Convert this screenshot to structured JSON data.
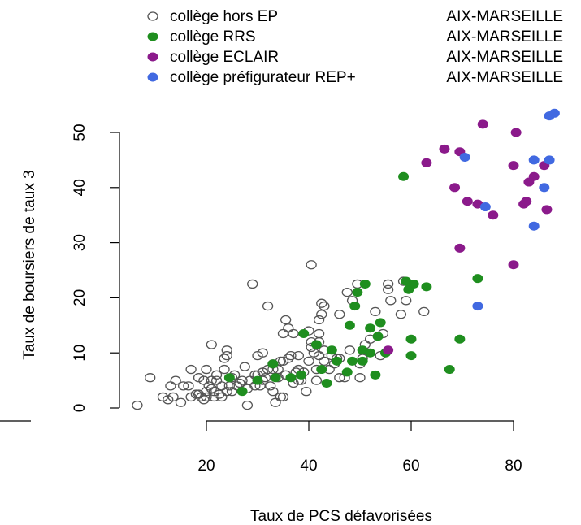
{
  "chart_data": {
    "type": "scatter",
    "xlabel": "Taux de PCS défavorisées",
    "ylabel": "Taux de boursiers de taux 3",
    "xlim": [
      5,
      89
    ],
    "ylim": [
      -1,
      57
    ],
    "xticks": [
      20,
      40,
      60,
      80
    ],
    "yticks": [
      0,
      10,
      20,
      30,
      40,
      50
    ],
    "xtick_labels": [
      "20",
      "40",
      "60",
      "80"
    ],
    "ytick_labels": [
      "0",
      "10",
      "20",
      "30",
      "40",
      "50"
    ],
    "grid": false,
    "legend_position": "top",
    "series": [
      {
        "name": "collège hors EP",
        "region": "AIX-MARSEILLE",
        "color": "#555555",
        "marker": "open-circle",
        "points": [
          [
            6.5,
            0.5
          ],
          [
            9,
            5.5
          ],
          [
            11.5,
            2
          ],
          [
            12.5,
            1.5
          ],
          [
            13,
            4
          ],
          [
            13.5,
            2
          ],
          [
            14,
            5
          ],
          [
            15,
            1
          ],
          [
            15.5,
            4
          ],
          [
            16.5,
            4
          ],
          [
            17,
            2
          ],
          [
            17,
            7
          ],
          [
            18,
            2.5
          ],
          [
            18.5,
            2.5
          ],
          [
            18.5,
            5.5
          ],
          [
            19,
            2
          ],
          [
            19.5,
            1.5
          ],
          [
            19.5,
            5
          ],
          [
            20,
            2
          ],
          [
            20,
            3
          ],
          [
            20,
            7
          ],
          [
            20.5,
            4
          ],
          [
            21,
            3.5
          ],
          [
            21,
            5
          ],
          [
            21,
            11.5
          ],
          [
            21.5,
            2
          ],
          [
            21.5,
            3
          ],
          [
            22,
            5
          ],
          [
            22,
            6
          ],
          [
            22.5,
            2.5
          ],
          [
            23,
            4
          ],
          [
            23,
            2
          ],
          [
            23.5,
            7
          ],
          [
            23.5,
            9
          ],
          [
            24,
            3
          ],
          [
            24,
            9.5
          ],
          [
            24,
            10.5
          ],
          [
            24.5,
            4
          ],
          [
            25,
            3
          ],
          [
            25,
            5.5
          ],
          [
            25.5,
            6
          ],
          [
            26,
            4
          ],
          [
            26.5,
            4.5
          ],
          [
            27,
            5
          ],
          [
            27.5,
            7.5
          ],
          [
            28,
            0.5
          ],
          [
            28,
            3.5
          ],
          [
            28.5,
            5
          ],
          [
            29,
            22.5
          ],
          [
            29.5,
            4
          ],
          [
            29.5,
            6
          ],
          [
            30,
            6
          ],
          [
            30,
            9.5
          ],
          [
            30.5,
            4
          ],
          [
            31,
            5
          ],
          [
            31,
            6.5
          ],
          [
            31,
            10
          ],
          [
            31.5,
            5.5
          ],
          [
            32,
            7
          ],
          [
            32,
            18.5
          ],
          [
            32.5,
            4
          ],
          [
            33,
            3
          ],
          [
            33,
            7
          ],
          [
            33,
            8
          ],
          [
            33.5,
            1
          ],
          [
            34,
            5.5
          ],
          [
            34,
            7
          ],
          [
            34.5,
            2
          ],
          [
            34.5,
            8.5
          ],
          [
            35,
            2
          ],
          [
            35,
            8.5
          ],
          [
            35,
            13.5
          ],
          [
            35.5,
            6
          ],
          [
            35.5,
            16
          ],
          [
            36,
            9
          ],
          [
            36,
            14.5
          ],
          [
            36.5,
            9.5
          ],
          [
            37,
            4.5
          ],
          [
            37,
            13.5
          ],
          [
            37.5,
            6.5
          ],
          [
            38,
            5
          ],
          [
            38,
            7
          ],
          [
            38,
            9.5
          ],
          [
            38.5,
            5
          ],
          [
            39,
            6.5
          ],
          [
            39.5,
            3
          ],
          [
            40,
            8.5
          ],
          [
            40,
            14
          ],
          [
            40.5,
            11
          ],
          [
            40.5,
            12
          ],
          [
            40.5,
            26
          ],
          [
            41,
            10
          ],
          [
            41.5,
            5
          ],
          [
            41.5,
            7
          ],
          [
            42,
            9.5
          ],
          [
            42,
            12
          ],
          [
            42,
            13.5
          ],
          [
            42,
            16
          ],
          [
            42.5,
            17
          ],
          [
            42.5,
            19
          ],
          [
            43,
            8.5
          ],
          [
            43,
            10.5
          ],
          [
            43,
            18.5
          ],
          [
            44,
            7
          ],
          [
            44.5,
            9.5
          ],
          [
            45,
            8
          ],
          [
            45.5,
            9
          ],
          [
            46,
            5.5
          ],
          [
            46,
            9
          ],
          [
            46,
            17
          ],
          [
            47,
            5.5
          ],
          [
            47.5,
            21
          ],
          [
            48,
            10.5
          ],
          [
            48.5,
            19.5
          ],
          [
            49.5,
            22.5
          ],
          [
            50,
            5.5
          ],
          [
            50,
            8
          ],
          [
            50.5,
            9
          ],
          [
            51,
            11.5
          ],
          [
            52,
            12.5
          ],
          [
            53,
            17.5
          ],
          [
            54,
            9.5
          ],
          [
            54.5,
            13.5
          ],
          [
            55.5,
            22.5
          ],
          [
            55.5,
            21.5
          ],
          [
            56,
            19.5
          ],
          [
            58,
            17
          ],
          [
            58.5,
            23
          ],
          [
            59,
            19.5
          ],
          [
            62.5,
            17.5
          ]
        ]
      },
      {
        "name": "collège RRS",
        "region": "AIX-MARSEILLE",
        "color": "#1f8e1f",
        "marker": "filled-circle",
        "points": [
          [
            24.5,
            5.5
          ],
          [
            27,
            3
          ],
          [
            30,
            5
          ],
          [
            33,
            8
          ],
          [
            33.5,
            5.5
          ],
          [
            36.5,
            5.5
          ],
          [
            38.5,
            6
          ],
          [
            39,
            13.5
          ],
          [
            41.5,
            11.5
          ],
          [
            42.5,
            7
          ],
          [
            43.5,
            4.5
          ],
          [
            44.5,
            10.5
          ],
          [
            45.5,
            8.5
          ],
          [
            47.5,
            6.5
          ],
          [
            48,
            15
          ],
          [
            48.5,
            8.5
          ],
          [
            49,
            18.5
          ],
          [
            49.5,
            21
          ],
          [
            50.5,
            10.5
          ],
          [
            50.5,
            8.5
          ],
          [
            51,
            22.5
          ],
          [
            52,
            14.5
          ],
          [
            52,
            10
          ],
          [
            53,
            6
          ],
          [
            53.5,
            13
          ],
          [
            54,
            15.5
          ],
          [
            55,
            10
          ],
          [
            58.5,
            42
          ],
          [
            59,
            23
          ],
          [
            59.5,
            21.5
          ],
          [
            60,
            12.5
          ],
          [
            60,
            9.5
          ],
          [
            60.5,
            22.5
          ],
          [
            63,
            22
          ],
          [
            67.5,
            7
          ],
          [
            69.5,
            12.5
          ],
          [
            73,
            23.5
          ]
        ]
      },
      {
        "name": "collège ECLAIR",
        "region": "AIX-MARSEILLE",
        "color": "#8b1a8b",
        "marker": "filled-circle",
        "points": [
          [
            55.5,
            10.5
          ],
          [
            63,
            44.5
          ],
          [
            66.5,
            47
          ],
          [
            68.5,
            40
          ],
          [
            69.5,
            46.5
          ],
          [
            69.5,
            29
          ],
          [
            71,
            37.5
          ],
          [
            73,
            37
          ],
          [
            74,
            51.5
          ],
          [
            76,
            35
          ],
          [
            80,
            26
          ],
          [
            80,
            44
          ],
          [
            80.5,
            50
          ],
          [
            82,
            37
          ],
          [
            83,
            41
          ],
          [
            82.5,
            37.5
          ],
          [
            84,
            42
          ],
          [
            86,
            44
          ],
          [
            86.5,
            36
          ]
        ]
      },
      {
        "name": "collège préfigurateur REP+",
        "region": "AIX-MARSEILLE",
        "color": "#4169e1",
        "marker": "filled-circle",
        "points": [
          [
            70.5,
            45.5
          ],
          [
            73,
            18.5
          ],
          [
            74.5,
            36.5
          ],
          [
            84,
            33
          ],
          [
            84,
            45
          ],
          [
            86,
            40
          ],
          [
            87,
            53
          ],
          [
            87,
            45
          ],
          [
            88,
            53.5
          ]
        ]
      }
    ]
  },
  "legend": {
    "entries": [
      {
        "label": "collège hors EP",
        "region": "AIX-MARSEILLE",
        "color": "#555555",
        "marker": "open-circle"
      },
      {
        "label": "collège RRS",
        "region": "AIX-MARSEILLE",
        "color": "#1f8e1f",
        "marker": "filled-circle"
      },
      {
        "label": "collège ECLAIR",
        "region": "AIX-MARSEILLE",
        "color": "#8b1a8b",
        "marker": "filled-circle"
      },
      {
        "label": "collège préfigurateur REP+",
        "region": "AIX-MARSEILLE",
        "color": "#4169e1",
        "marker": "filled-circle"
      }
    ]
  }
}
